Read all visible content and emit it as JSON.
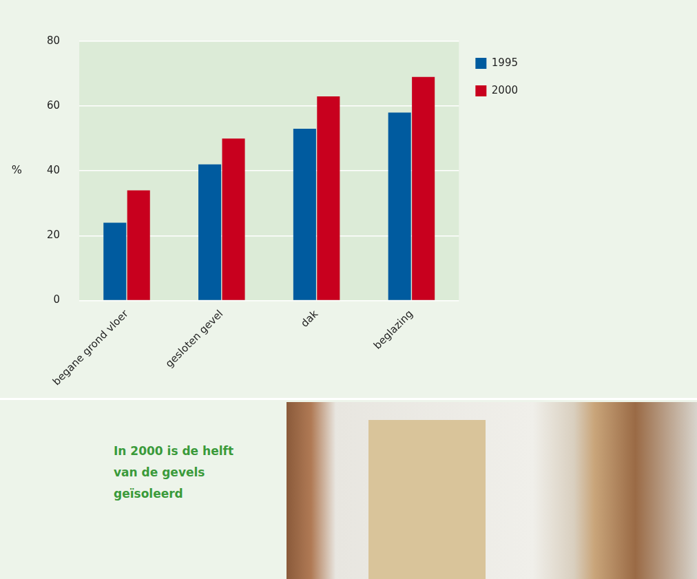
{
  "chart_data": {
    "type": "bar",
    "categories": [
      "begane grond vloer",
      "gesloten gevel",
      "dak",
      "beglazing"
    ],
    "series": [
      {
        "name": "1995",
        "color": "#005b9f",
        "values": [
          24,
          42,
          53,
          58
        ]
      },
      {
        "name": "2000",
        "color": "#c8001e",
        "values": [
          34,
          50,
          63,
          69
        ]
      }
    ],
    "y_label": "%",
    "ylim": [
      0,
      80
    ],
    "yticks": [
      0,
      20,
      40,
      60,
      80
    ],
    "grid": true,
    "legend": "right",
    "annotations": [
      "In 2000 is de helft van de gevels geïsoleerd"
    ]
  }
}
